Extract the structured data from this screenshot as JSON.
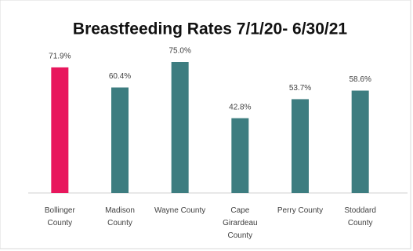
{
  "chart_data": {
    "type": "bar",
    "title": "Breastfeeding Rates 7/1/20- 6/30/21",
    "categories": [
      "Bollinger County",
      "Madison County",
      "Wayne County",
      "Cape Girardeau County",
      "Perry County",
      "Stoddard County"
    ],
    "values": [
      71.9,
      60.4,
      75.0,
      42.8,
      53.7,
      58.6
    ],
    "value_labels": [
      "71.9%",
      "60.4%",
      "75.0%",
      "42.8%",
      "53.7%",
      "58.6%"
    ],
    "colors": [
      "#e8175d",
      "#3d7d80",
      "#3d7d80",
      "#3d7d80",
      "#3d7d80",
      "#3d7d80"
    ]
  }
}
